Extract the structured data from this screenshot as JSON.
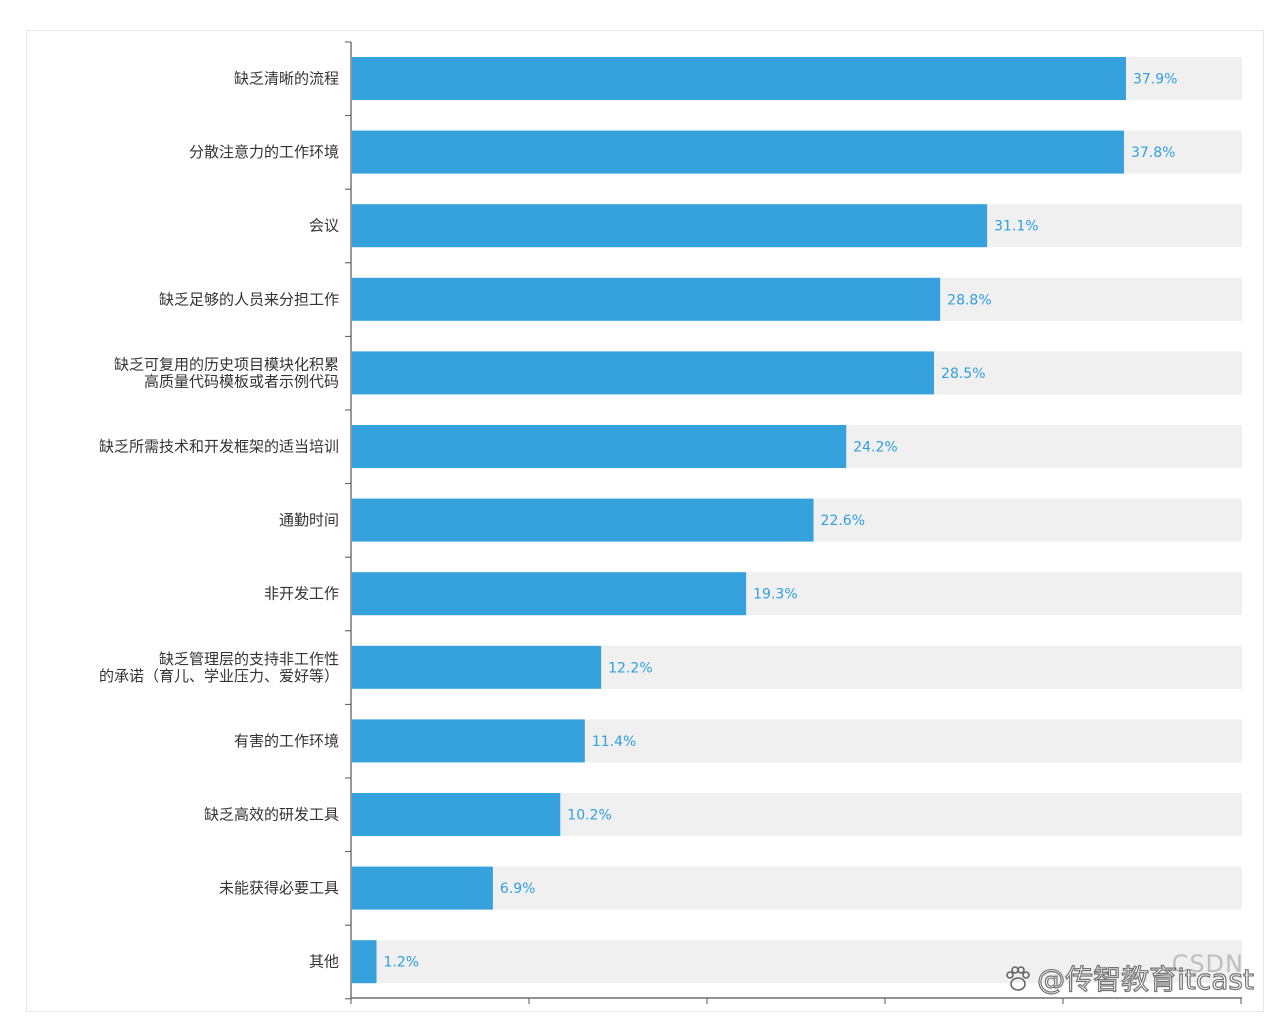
{
  "chart_data": {
    "type": "bar",
    "orientation": "horizontal",
    "title": "",
    "xlabel": "",
    "ylabel": "",
    "xlim": [
      0,
      50
    ],
    "grid": false,
    "categories": [
      [
        "缺乏清晰的流程"
      ],
      [
        "分散注意力的工作环境"
      ],
      [
        "会议"
      ],
      [
        "缺乏足够的人员来分担工作"
      ],
      [
        "缺乏可复用的历史项目模块化积累",
        "高质量代码模板或者示例代码"
      ],
      [
        "缺乏所需技术和开发框架的适当培训"
      ],
      [
        "通勤时间"
      ],
      [
        "非开发工作"
      ],
      [
        "缺乏管理层的支持非工作性",
        "的承诺（育儿、学业压力、爱好等）"
      ],
      [
        "有害的工作环境"
      ],
      [
        "缺乏高效的研发工具"
      ],
      [
        "未能获得必要工具"
      ],
      [
        "其他"
      ]
    ],
    "values": [
      37.9,
      37.8,
      31.1,
      28.8,
      28.5,
      24.2,
      22.6,
      19.3,
      12.2,
      11.4,
      10.2,
      6.9,
      1.2
    ],
    "value_labels": [
      "37.9%",
      "37.8%",
      "31.1%",
      "28.8%",
      "28.5%",
      "24.2%",
      "22.6%",
      "19.3%",
      "12.2%",
      "11.4%",
      "10.2%",
      "6.9%",
      "1.2%"
    ],
    "colors": {
      "bar": "#35a1dd",
      "track": "#f0f0f0",
      "axis": "#555555",
      "value_text": "#2f9fe0"
    }
  },
  "watermark": {
    "platform": "CSDN",
    "text": "@传智教育itcast",
    "icon": "paw-icon"
  }
}
